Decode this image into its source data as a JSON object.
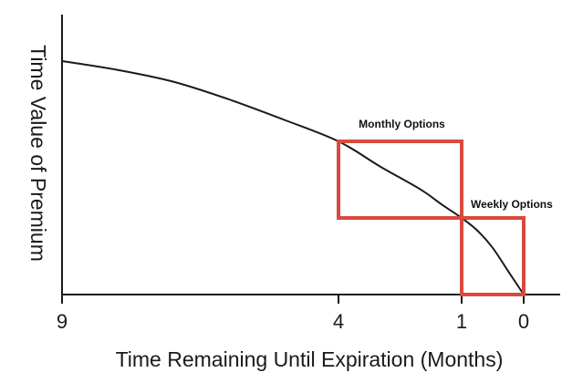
{
  "chart_data": {
    "type": "line",
    "title": "",
    "xlabel": "Time Remaining Until Expiration (Months)",
    "ylabel": "Time Value of Premium",
    "x_direction": "reversed",
    "x_ticks": [
      {
        "value": 9,
        "label": "9"
      },
      {
        "value": 4,
        "label": "4"
      },
      {
        "value": 1,
        "label": "1"
      },
      {
        "value": 0,
        "label": "0"
      }
    ],
    "y_ticks": [],
    "grid": false,
    "series": [
      {
        "color": "#1a1a1a",
        "points": [
          {
            "x": 9,
            "y": 0.8
          },
          {
            "x": 8,
            "y": 0.77
          },
          {
            "x": 7,
            "y": 0.73
          },
          {
            "x": 6,
            "y": 0.67
          },
          {
            "x": 5,
            "y": 0.6
          },
          {
            "x": 4,
            "y": 0.525
          },
          {
            "x": 3,
            "y": 0.44
          },
          {
            "x": 2,
            "y": 0.36
          },
          {
            "x": 1.5,
            "y": 0.31
          },
          {
            "x": 1,
            "y": 0.2625
          },
          {
            "x": 0.75,
            "y": 0.22
          },
          {
            "x": 0.5,
            "y": 0.16
          },
          {
            "x": 0.25,
            "y": 0.08
          },
          {
            "x": 0,
            "y": 0.0
          }
        ]
      }
    ],
    "annotations": [
      {
        "label": "Monthly Options",
        "x_from": 4,
        "x_to": 1,
        "y_from": 0.2625,
        "y_to": 0.525,
        "color": "#d94a3d"
      },
      {
        "label": "Weekly Options",
        "x_from": 1,
        "x_to": 0,
        "y_from": 0.0,
        "y_to": 0.2625,
        "color": "#d94a3d"
      }
    ]
  }
}
